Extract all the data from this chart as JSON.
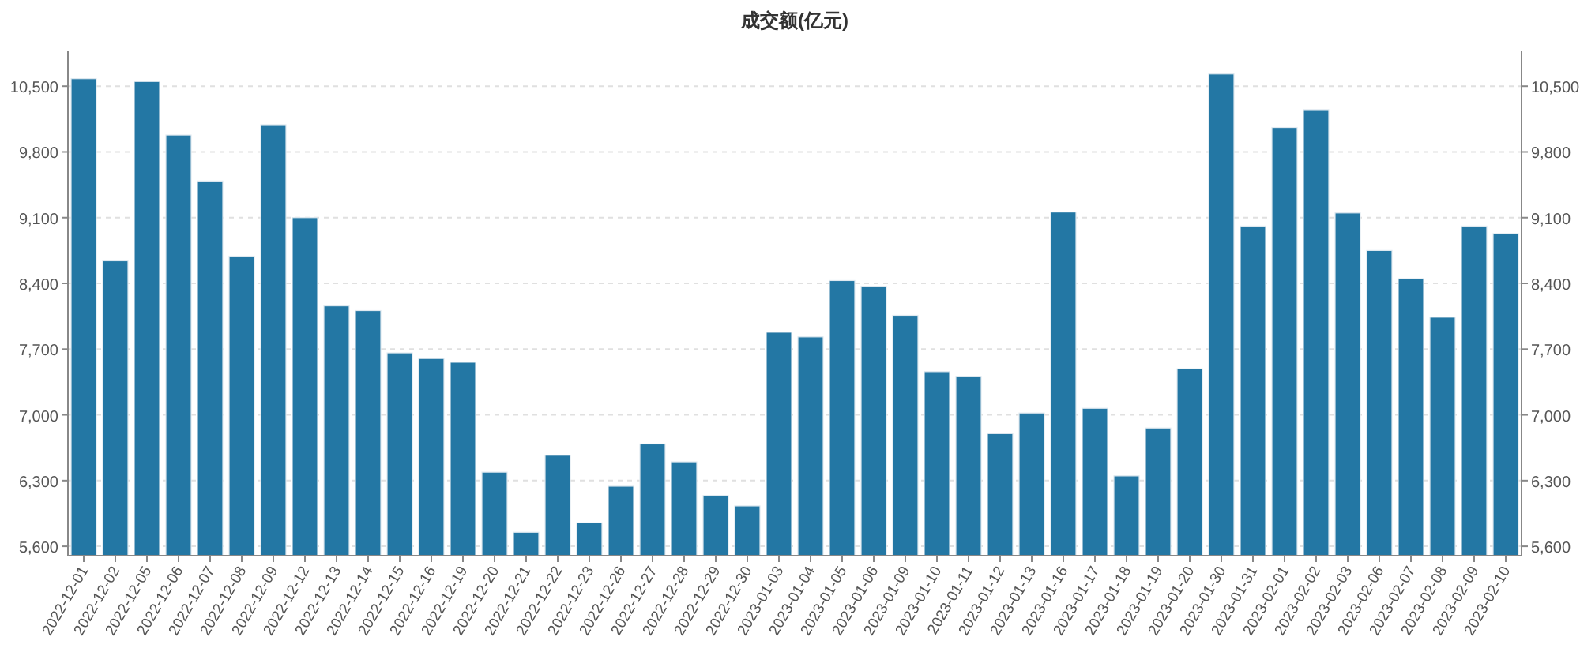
{
  "chart_data": {
    "type": "bar",
    "title": "成交额(亿元)",
    "categories": [
      "2022-12-01",
      "2022-12-02",
      "2022-12-05",
      "2022-12-06",
      "2022-12-07",
      "2022-12-08",
      "2022-12-09",
      "2022-12-12",
      "2022-12-13",
      "2022-12-14",
      "2022-12-15",
      "2022-12-16",
      "2022-12-19",
      "2022-12-20",
      "2022-12-21",
      "2022-12-22",
      "2022-12-23",
      "2022-12-26",
      "2022-12-27",
      "2022-12-28",
      "2022-12-29",
      "2022-12-30",
      "2023-01-03",
      "2023-01-04",
      "2023-01-05",
      "2023-01-06",
      "2023-01-09",
      "2023-01-10",
      "2023-01-11",
      "2023-01-12",
      "2023-01-13",
      "2023-01-16",
      "2023-01-17",
      "2023-01-18",
      "2023-01-19",
      "2023-01-20",
      "2023-01-30",
      "2023-01-31",
      "2023-02-01",
      "2023-02-02",
      "2023-02-03",
      "2023-02-06",
      "2023-02-07",
      "2023-02-08",
      "2023-02-09",
      "2023-02-10"
    ],
    "values": [
      10580,
      8640,
      10550,
      9980,
      9490,
      8690,
      10090,
      9100,
      8160,
      8110,
      7660,
      7600,
      7560,
      6390,
      5750,
      6570,
      5850,
      6240,
      6690,
      6500,
      6140,
      6030,
      7880,
      7830,
      8430,
      8370,
      8060,
      7460,
      7410,
      6800,
      7020,
      9160,
      7070,
      6350,
      6860,
      7490,
      10630,
      9010,
      10060,
      10250,
      9150,
      8750,
      8450,
      8040,
      9010,
      8930
    ],
    "color": "#2377a4",
    "ylim": [
      5500,
      10880
    ],
    "yticks": [
      {
        "value": 5600,
        "label": "5,600"
      },
      {
        "value": 6300,
        "label": "6,300"
      },
      {
        "value": 7000,
        "label": "7,000"
      },
      {
        "value": 7700,
        "label": "7,700"
      },
      {
        "value": 8400,
        "label": "8,400"
      },
      {
        "value": 9100,
        "label": "9,100"
      },
      {
        "value": 9800,
        "label": "9,800"
      },
      {
        "value": 10500,
        "label": "10,500"
      }
    ],
    "y2lim": [
      5500,
      10880
    ],
    "y2ticks": [
      {
        "value": 5600,
        "label": "5,600"
      },
      {
        "value": 6300,
        "label": "6,300"
      },
      {
        "value": 7000,
        "label": "7,000"
      },
      {
        "value": 7700,
        "label": "7,700"
      },
      {
        "value": 8400,
        "label": "8,400"
      },
      {
        "value": 9100,
        "label": "9,100"
      },
      {
        "value": 9800,
        "label": "9,800"
      },
      {
        "value": 10500,
        "label": "10,500"
      }
    ],
    "grid": "y"
  }
}
